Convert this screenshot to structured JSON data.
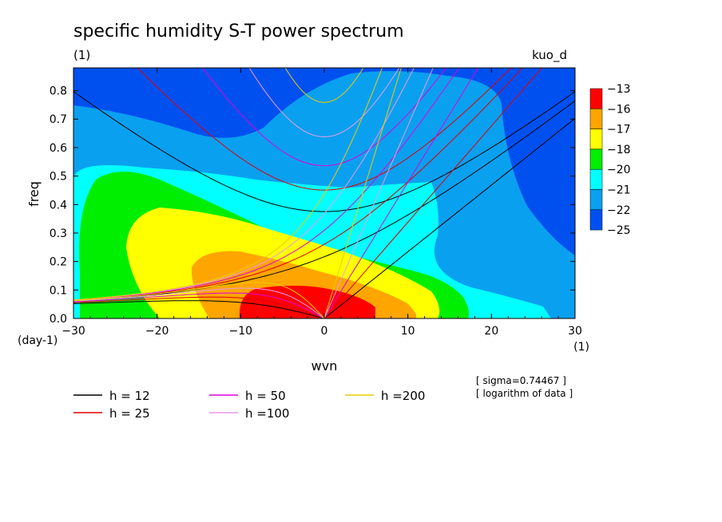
{
  "header": {
    "title": "specific humidity S-T power spectrum",
    "subtitle_left": "(1)",
    "subtitle_right": "kuo_d"
  },
  "notes": {
    "sigma": "[ sigma=0.74467 ]",
    "log": "[ logarithm of data ]"
  },
  "chart_data": {
    "type": "heatmap",
    "title": "specific humidity S-T power spectrum",
    "xlabel": "wvn",
    "ylabel": "freq",
    "x_unit": "(1)",
    "y_unit": "(day-1)",
    "xlim": [
      -30,
      30
    ],
    "ylim": [
      0,
      0.88
    ],
    "x_ticks": [
      -30,
      -20,
      -10,
      0,
      10,
      20,
      30
    ],
    "y_ticks": [
      0.0,
      0.1,
      0.2,
      0.3,
      0.4,
      0.5,
      0.6,
      0.7,
      0.8
    ],
    "x_tick_labels": [
      "−30",
      "−20",
      "−10",
      "0",
      "10",
      "20",
      "30"
    ],
    "y_tick_labels": [
      "0.0",
      "0.1",
      "0.2",
      "0.3",
      "0.4",
      "0.5",
      "0.6",
      "0.7",
      "0.8"
    ],
    "colorbar": {
      "labels": [
        "−13",
        "−16",
        "−17",
        "−18",
        "−20",
        "−21",
        "−22",
        "−25"
      ],
      "colors": [
        "#ff0000",
        "#ffa500",
        "#ffff00",
        "#00ee00",
        "#00ffff",
        "#0aa0f0",
        "#0050f0"
      ]
    },
    "dispersion_curves": [
      {
        "name": "h = 12",
        "color": "#000000",
        "h": 12
      },
      {
        "name": "h = 25",
        "color": "#dd0000",
        "h": 25
      },
      {
        "name": "h = 50",
        "color": "#dd00dd",
        "h": 50
      },
      {
        "name": "h =100",
        "color": "#e89ce8",
        "h": 100
      },
      {
        "name": "h =200",
        "color": "#eecc00",
        "h": 200
      }
    ]
  }
}
